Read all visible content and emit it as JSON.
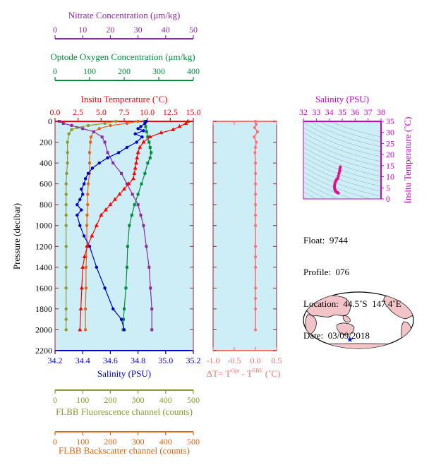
{
  "colors": {
    "temperature": "#ff0000",
    "salinity": "#0000cc",
    "oxygen": "#008c3a",
    "nitrate": "#8c2a9e",
    "fluorescence": "#8c9a2a",
    "backscatter": "#e06414",
    "delta_t": "#ff6e6e",
    "ts_points": "#e0108a",
    "ts_axis": "#cc00cc",
    "plot_bg": "#cdeef7",
    "pressure_axis": "#8c2a2a"
  },
  "info": {
    "float": "Float:  9744",
    "profile": "Profile:  076",
    "location": "Location:  44.5˚S  147.4˚E",
    "date": "Date:  03/09/2018"
  },
  "chart_data": [
    {
      "type": "line",
      "panel": "main-profile",
      "yaxis": {
        "label": "Pressure (decibar)",
        "range": [
          0,
          2200
        ],
        "ticks": [
          0,
          200,
          400,
          600,
          800,
          1000,
          1200,
          1400,
          1600,
          1800,
          2000,
          2200
        ],
        "inverted": true
      },
      "axes": {
        "nitrate": {
          "title": "Nitrate Concentration (μm/kg)",
          "range": [
            0,
            50
          ],
          "ticks": [
            "0",
            "10",
            "20",
            "30",
            "40",
            "50"
          ]
        },
        "oxygen": {
          "title": "Optode Oxygen Concentration (μm/kg)",
          "range": [
            0,
            400
          ],
          "ticks": [
            "0",
            "100",
            "200",
            "300",
            "400"
          ]
        },
        "temperature": {
          "title": "Insitu Temperature (˚C)",
          "range": [
            0,
            15
          ],
          "ticks": [
            "0.0",
            "2.5",
            "5.0",
            "7.5",
            "10.0",
            "12.5",
            "15.0"
          ]
        },
        "salinity": {
          "title": "Salinity (PSU)",
          "range": [
            34.2,
            35.2
          ],
          "ticks": [
            "34.2",
            "34.4",
            "34.6",
            "34.8",
            "35.0",
            "35.2"
          ]
        },
        "fluorescence": {
          "title": "FLBB Fluorescence channel (counts)",
          "range": [
            0,
            500
          ],
          "ticks": [
            "0",
            "100",
            "200",
            "300",
            "400",
            "500"
          ]
        },
        "backscatter": {
          "title": "FLBB Backscatter channel (counts)",
          "range": [
            0,
            500
          ],
          "ticks": [
            "0",
            "100",
            "200",
            "300",
            "400",
            "500"
          ]
        }
      },
      "series": [
        {
          "key": "temperature",
          "marker": "triangle",
          "x": [
            14.4,
            14.2,
            13.5,
            12.8,
            11.5,
            10.3,
            9.6,
            9.2,
            9.0,
            8.9,
            8.8,
            8.7,
            8.6,
            8.5,
            8.0,
            7.5,
            7.0,
            6.5,
            6.0,
            5.5,
            5.0,
            4.5,
            4.0,
            3.5,
            3.2,
            3.0,
            2.9,
            2.8,
            2.7
          ],
          "y": [
            0,
            20,
            50,
            80,
            110,
            150,
            200,
            250,
            300,
            350,
            400,
            450,
            500,
            550,
            600,
            650,
            700,
            750,
            800,
            850,
            900,
            1000,
            1100,
            1200,
            1300,
            1400,
            1600,
            1800,
            2000
          ]
        },
        {
          "key": "salinity",
          "marker": "circle",
          "x": [
            34.86,
            34.85,
            34.82,
            34.8,
            34.84,
            34.78,
            34.83,
            34.79,
            34.72,
            34.66,
            34.58,
            34.52,
            34.47,
            34.44,
            34.42,
            34.41,
            34.39,
            34.4,
            34.38,
            34.36,
            34.39,
            34.36,
            34.38,
            34.41,
            34.45,
            34.5,
            34.56,
            34.62,
            34.68,
            34.7
          ],
          "y": [
            0,
            20,
            50,
            70,
            90,
            120,
            150,
            200,
            250,
            300,
            350,
            400,
            450,
            500,
            550,
            600,
            650,
            700,
            750,
            800,
            850,
            900,
            1000,
            1100,
            1200,
            1400,
            1600,
            1800,
            1900,
            2000
          ]
        },
        {
          "key": "oxygen",
          "marker": "square",
          "x": [
            260,
            262,
            265,
            268,
            272,
            275,
            278,
            275,
            268,
            260,
            250,
            240,
            230,
            222,
            215,
            210,
            208,
            205,
            200,
            198,
            197
          ],
          "y": [
            0,
            50,
            100,
            150,
            200,
            250,
            300,
            350,
            400,
            500,
            600,
            700,
            800,
            900,
            1000,
            1200,
            1400,
            1600,
            1800,
            1900,
            2000
          ]
        },
        {
          "key": "nitrate",
          "marker": "square",
          "x": [
            1.5,
            3,
            6,
            10,
            14,
            17,
            18,
            19,
            21,
            24,
            26,
            28,
            30,
            31,
            32,
            33,
            34,
            34.5,
            35,
            35
          ],
          "y": [
            0,
            20,
            40,
            70,
            100,
            150,
            200,
            300,
            400,
            500,
            600,
            700,
            800,
            900,
            1000,
            1200,
            1400,
            1600,
            1800,
            2000
          ]
        },
        {
          "key": "fluorescence",
          "marker": "circle",
          "x": [
            220,
            180,
            120,
            80,
            60,
            50,
            45,
            45,
            45,
            42,
            40,
            40,
            40,
            40,
            40,
            40,
            40,
            40,
            40,
            40,
            40
          ],
          "y": [
            0,
            20,
            40,
            60,
            80,
            120,
            200,
            300,
            400,
            500,
            600,
            700,
            800,
            900,
            1000,
            1200,
            1400,
            1600,
            1800,
            1900,
            2000
          ]
        },
        {
          "key": "backscatter",
          "marker": "circle",
          "x": [
            300,
            260,
            200,
            160,
            140,
            130,
            128,
            125,
            125,
            125,
            120,
            118,
            118,
            116,
            115,
            115,
            112,
            112,
            110,
            110
          ],
          "y": [
            0,
            20,
            40,
            70,
            100,
            150,
            200,
            300,
            400,
            500,
            600,
            700,
            800,
            900,
            1000,
            1200,
            1400,
            1600,
            1800,
            2000
          ]
        }
      ]
    },
    {
      "type": "scatter",
      "panel": "delta-t",
      "xlabel": "ΔT= T",
      "xlabel_sup1": "Opt",
      "xlabel_mid": " - T",
      "xlabel_sup2": "SBE",
      "xlabel_end": " (˚C)",
      "xlim": [
        -1.0,
        0.5
      ],
      "xticks": [
        "-1.0",
        "-0.5",
        "0.0",
        "0.5"
      ],
      "ylim": [
        0,
        2200
      ],
      "x": [
        0.0,
        0.02,
        -0.02,
        0.05,
        -0.03,
        0.02,
        0.0,
        -0.01,
        0.0,
        0.0,
        0.0,
        0.0,
        0.0,
        0.0,
        0.0,
        0.0,
        0.0,
        0.0,
        0.0,
        0.0,
        0.0,
        0.0
      ],
      "y": [
        0,
        30,
        60,
        100,
        150,
        200,
        250,
        300,
        400,
        500,
        600,
        700,
        800,
        900,
        1000,
        1200,
        1300,
        1400,
        1600,
        1700,
        1800,
        2000
      ]
    },
    {
      "type": "scatter",
      "panel": "ts-diagram",
      "title": "Salinity (PSU)",
      "xlim": [
        32,
        38
      ],
      "xticks": [
        "32",
        "33",
        "34",
        "35",
        "36",
        "37",
        "38"
      ],
      "ylabel": "Insitu Temperature (˚C)",
      "ylim": [
        0,
        35
      ],
      "yticks": [
        "0",
        "5",
        "10",
        "15",
        "20",
        "25",
        "30",
        "35"
      ],
      "x": [
        34.85,
        34.82,
        34.8,
        34.75,
        34.7,
        34.65,
        34.58,
        34.52,
        34.46,
        34.42,
        34.4,
        34.42,
        34.45,
        34.5,
        34.55,
        34.6,
        34.65,
        34.7
      ],
      "y": [
        14.4,
        13.5,
        12.5,
        11.5,
        10.3,
        9.3,
        8.8,
        8.3,
        7.5,
        6.5,
        5.5,
        4.5,
        4.0,
        3.5,
        3.2,
        3.0,
        2.8,
        2.7
      ]
    }
  ]
}
